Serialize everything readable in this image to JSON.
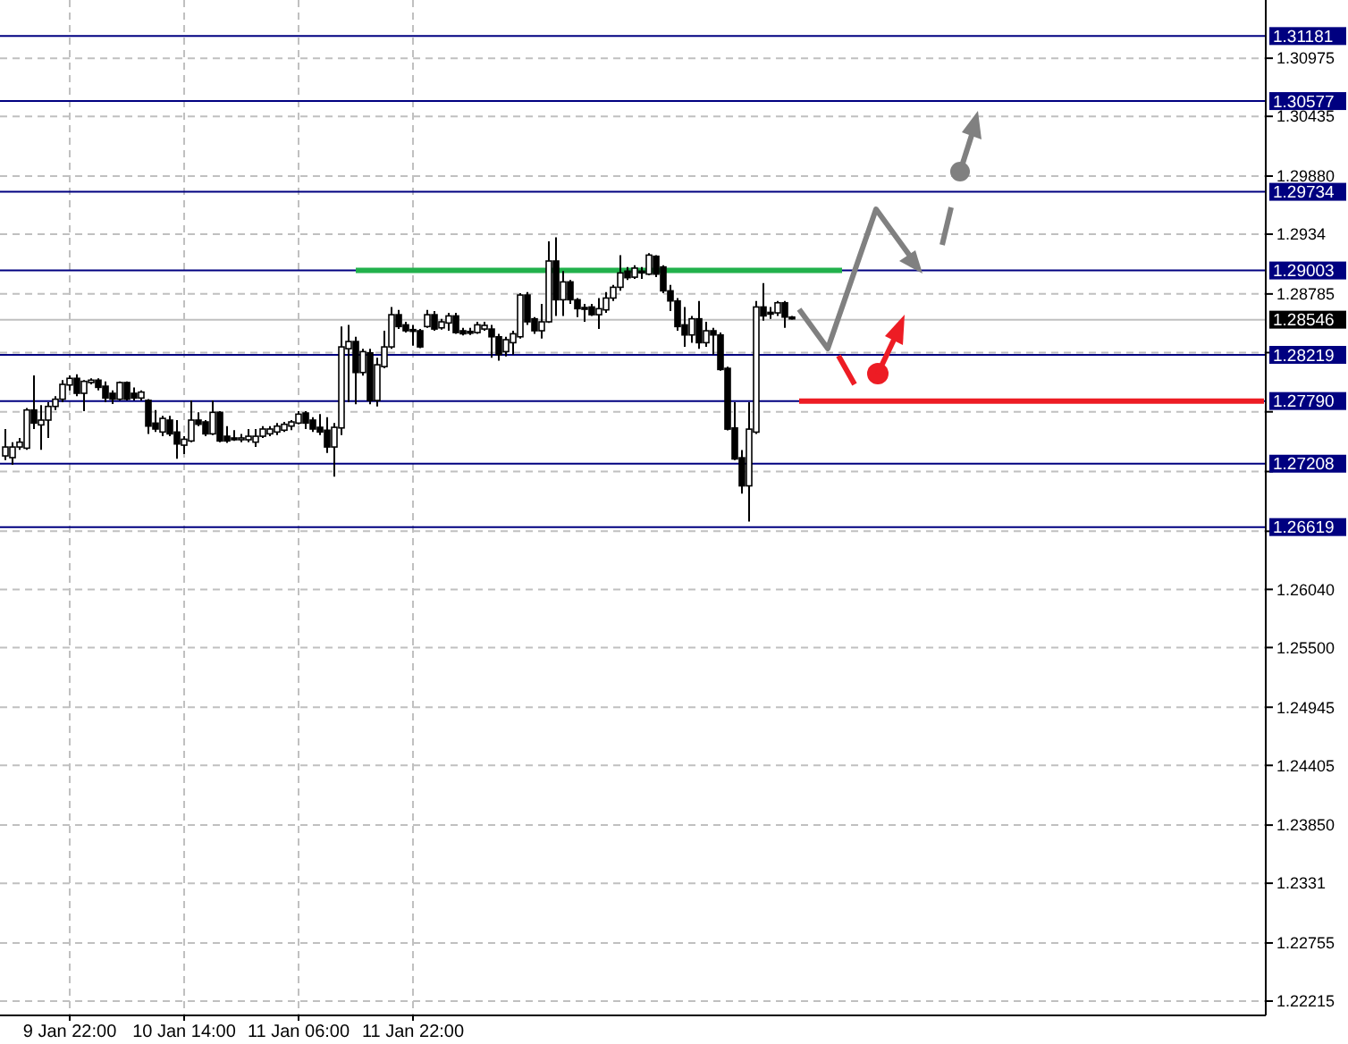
{
  "chart_data": {
    "type": "candlestick",
    "categories": [
      null,
      null,
      null,
      null,
      null,
      null,
      null,
      null,
      null,
      "9 Jan 22:00",
      null,
      null,
      null,
      null,
      null,
      null,
      null,
      null,
      null,
      null,
      null,
      null,
      null,
      null,
      null,
      "10 Jan 14:00",
      null,
      null,
      null,
      null,
      null,
      null,
      null,
      null,
      null,
      null,
      null,
      null,
      null,
      null,
      null,
      "11 Jan 06:00",
      null,
      null,
      null,
      null,
      null,
      null,
      null,
      null,
      null,
      null,
      null,
      null,
      null,
      null,
      null,
      "11 Jan 22:00",
      null,
      null,
      null,
      null,
      null,
      null,
      null,
      null,
      null,
      null,
      null,
      null,
      null,
      null,
      null,
      null,
      null,
      null,
      null,
      null,
      null,
      null,
      null,
      null,
      null,
      null,
      null,
      null,
      null,
      null,
      null,
      null,
      null,
      null,
      null,
      null,
      null,
      null,
      null,
      null,
      null,
      null,
      null,
      null,
      null,
      null,
      null,
      null,
      null,
      null,
      null,
      null,
      null,
      null,
      null,
      null,
      null,
      null,
      null,
      null,
      null,
      null,
      null,
      null,
      null,
      null,
      null,
      null,
      null,
      null,
      null,
      null,
      null,
      null,
      null,
      null,
      null,
      null,
      null,
      null,
      null,
      null,
      null,
      null,
      null,
      null,
      null,
      null,
      null,
      null,
      null,
      null,
      null,
      null,
      null,
      null,
      null,
      null,
      null,
      null,
      null,
      null,
      null,
      null,
      null,
      null,
      null,
      null,
      null,
      null,
      null,
      null,
      null,
      null,
      null,
      null,
      null,
      null,
      null
    ],
    "ohlc": [
      [
        1.2728,
        1.2753,
        1.27242,
        1.27363
      ],
      [
        1.27264,
        1.27408,
        1.27197,
        1.27363
      ],
      [
        1.27363,
        1.27447,
        1.27336,
        1.27408
      ],
      [
        1.27352,
        1.27724,
        1.27336,
        1.27707
      ],
      [
        1.27707,
        1.28028,
        1.2753,
        1.27585
      ],
      [
        1.27568,
        1.27751,
        1.27336,
        1.27613
      ],
      [
        1.27613,
        1.27779,
        1.27447,
        1.2774
      ],
      [
        1.2774,
        1.27834,
        1.27707,
        1.27807
      ],
      [
        1.27807,
        1.27984,
        1.27779,
        1.27945
      ],
      [
        1.27939,
        1.28028,
        1.2789,
        1.28001
      ],
      [
        1.28001,
        1.28039,
        1.27834,
        1.27862
      ],
      [
        1.27862,
        1.27984,
        1.27696,
        1.27973
      ],
      [
        1.27962,
        1.28001,
        1.27945,
        1.27984
      ],
      [
        1.27984,
        1.28001,
        1.2789,
        1.27917
      ],
      [
        1.27928,
        1.27973,
        1.27779,
        1.27818
      ],
      [
        1.27862,
        1.2789,
        1.27762,
        1.27807
      ],
      [
        1.27807,
        1.27973,
        1.27796,
        1.27962
      ],
      [
        1.27962,
        1.27973,
        1.27796,
        1.27807
      ],
      [
        1.27862,
        1.27917,
        1.27796,
        1.27818
      ],
      [
        1.27818,
        1.2789,
        1.27796,
        1.27873
      ],
      [
        1.27796,
        1.27807,
        1.27485,
        1.27557
      ],
      [
        1.27585,
        1.27707,
        1.27502,
        1.2753
      ],
      [
        1.27502,
        1.27652,
        1.27463,
        1.27629
      ],
      [
        1.27613,
        1.27652,
        1.27463,
        1.27485
      ],
      [
        1.27502,
        1.27613,
        1.27253,
        1.27391
      ],
      [
        1.2738,
        1.27463,
        1.27297,
        1.27435
      ],
      [
        1.27419,
        1.27796,
        1.27408,
        1.27613
      ],
      [
        1.27613,
        1.27685,
        1.27557,
        1.27574
      ],
      [
        1.27596,
        1.27613,
        1.27463,
        1.27485
      ],
      [
        1.27485,
        1.27796,
        1.27474,
        1.27685
      ],
      [
        1.27685,
        1.27696,
        1.27408,
        1.27419
      ],
      [
        1.27463,
        1.27557,
        1.27402,
        1.27419
      ],
      [
        1.27447,
        1.27519,
        1.27419,
        1.27441
      ],
      [
        1.27441,
        1.27485,
        1.27408,
        1.27447
      ],
      [
        1.2743,
        1.2753,
        1.27408,
        1.27463
      ],
      [
        1.27408,
        1.2753,
        1.27363,
        1.27463
      ],
      [
        1.27463,
        1.27557,
        1.27447,
        1.2753
      ],
      [
        1.27485,
        1.27557,
        1.27463,
        1.2753
      ],
      [
        1.27502,
        1.27585,
        1.27474,
        1.27557
      ],
      [
        1.27519,
        1.27596,
        1.27502,
        1.27574
      ],
      [
        1.27557,
        1.27613,
        1.27519,
        1.27596
      ],
      [
        1.27585,
        1.27696,
        1.27574,
        1.27668
      ],
      [
        1.27679,
        1.27696,
        1.2753,
        1.27585
      ],
      [
        1.27613,
        1.2764,
        1.27502,
        1.2753
      ],
      [
        1.27546,
        1.27668,
        1.27474,
        1.27502
      ],
      [
        1.27519,
        1.2764,
        1.27308,
        1.27363
      ],
      [
        1.27363,
        1.27585,
        1.27087,
        1.27546
      ],
      [
        1.2754,
        1.28482,
        1.27473,
        1.28293
      ],
      [
        1.28276,
        1.28498,
        1.27778,
        1.28343
      ],
      [
        1.28343,
        1.28387,
        1.27761,
        1.28055
      ],
      [
        1.28055,
        1.28276,
        1.28027,
        1.28249
      ],
      [
        1.28238,
        1.28276,
        1.27761,
        1.27795
      ],
      [
        1.27795,
        1.28193,
        1.27739,
        1.28127
      ],
      [
        1.2811,
        1.28443,
        1.28094,
        1.28293
      ],
      [
        1.28293,
        1.28664,
        1.28276,
        1.28592
      ],
      [
        1.28592,
        1.28637,
        1.28459,
        1.28482
      ],
      [
        1.28498,
        1.28526,
        1.28426,
        1.28443
      ],
      [
        1.28454,
        1.28498,
        1.28304,
        1.28448
      ],
      [
        1.28443,
        1.28459,
        1.28282,
        1.28293
      ],
      [
        1.28482,
        1.28637,
        1.2847,
        1.28592
      ],
      [
        1.28592,
        1.28626,
        1.28443,
        1.28459
      ],
      [
        1.2847,
        1.28554,
        1.28454,
        1.28526
      ],
      [
        1.28515,
        1.28609,
        1.28443,
        1.28581
      ],
      [
        1.28581,
        1.28609,
        1.28415,
        1.28426
      ],
      [
        1.28443,
        1.2847,
        1.28399,
        1.28415
      ],
      [
        1.28437,
        1.2847,
        1.28404,
        1.28426
      ],
      [
        1.28426,
        1.28526,
        1.28415,
        1.28498
      ],
      [
        1.28459,
        1.28526,
        1.28443,
        1.28493
      ],
      [
        1.28459,
        1.28498,
        1.28193,
        1.28387
      ],
      [
        1.28387,
        1.28415,
        1.28166,
        1.28221
      ],
      [
        1.28249,
        1.28387,
        1.28205,
        1.2836
      ],
      [
        1.28332,
        1.28443,
        1.28221,
        1.28415
      ],
      [
        1.28387,
        1.28792,
        1.28371,
        1.28775
      ],
      [
        1.28775,
        1.28803,
        1.28498,
        1.28526
      ],
      [
        1.28554,
        1.2857,
        1.28415,
        1.28443
      ],
      [
        1.28443,
        1.28692,
        1.28371,
        1.28526
      ],
      [
        1.28526,
        1.29274,
        1.28515,
        1.29091
      ],
      [
        1.29091,
        1.29312,
        1.28581,
        1.28731
      ],
      [
        1.28731,
        1.28997,
        1.28581,
        1.28897
      ],
      [
        1.28897,
        1.28914,
        1.28692,
        1.28731
      ],
      [
        1.28731,
        1.28747,
        1.2857,
        1.28648
      ],
      [
        1.28659,
        1.28692,
        1.28526,
        1.28648
      ],
      [
        1.28664,
        1.28692,
        1.28581,
        1.28592
      ],
      [
        1.28592,
        1.28747,
        1.28459,
        1.28648
      ],
      [
        1.28637,
        1.28803,
        1.28609,
        1.28747
      ],
      [
        1.28747,
        1.28869,
        1.2872,
        1.28847
      ],
      [
        1.28847,
        1.29146,
        1.28814,
        1.2898
      ],
      [
        1.28997,
        1.29036,
        1.28914,
        1.28936
      ],
      [
        1.28941,
        1.29052,
        1.28925,
        1.29025
      ],
      [
        1.28997,
        1.29036,
        1.28925,
        1.28991
      ],
      [
        1.28969,
        1.29163,
        1.28958,
        1.29146
      ],
      [
        1.29135,
        1.29146,
        1.28942,
        1.28969
      ],
      [
        1.29036,
        1.29052,
        1.28792,
        1.28814
      ],
      [
        1.28814,
        1.28869,
        1.28626,
        1.2872
      ],
      [
        1.2872,
        1.28747,
        1.28443,
        1.28482
      ],
      [
        1.28498,
        1.28664,
        1.28293,
        1.28404
      ],
      [
        1.28404,
        1.28581,
        1.28332,
        1.28554
      ],
      [
        1.28554,
        1.2872,
        1.28276,
        1.28332
      ],
      [
        1.28332,
        1.28526,
        1.28293,
        1.28443
      ],
      [
        1.28443,
        1.2847,
        1.28221,
        1.28404
      ],
      [
        1.28404,
        1.28426,
        1.28072,
        1.28083
      ],
      [
        1.28094,
        1.2811,
        1.27518,
        1.27529
      ],
      [
        1.2754,
        1.27778,
        1.27241,
        1.27252
      ],
      [
        1.27263,
        1.27335,
        1.2693,
        1.27002
      ],
      [
        1.27002,
        1.27778,
        1.2667,
        1.27529
      ],
      [
        1.27501,
        1.2872,
        1.27484,
        1.28664
      ],
      [
        1.28664,
        1.28886,
        1.28537,
        1.28581
      ],
      [
        1.28614,
        1.28664,
        1.28554,
        1.28603
      ],
      [
        1.28609,
        1.2872,
        1.28581,
        1.28703
      ],
      [
        1.28703,
        1.2872,
        1.2847,
        1.2857
      ],
      [
        1.2857,
        1.28581,
        1.28548,
        1.28559
      ],
      null,
      null,
      null,
      null,
      null,
      null,
      null,
      null,
      null,
      null,
      null,
      null,
      null,
      null,
      null,
      null,
      null,
      null,
      null,
      null,
      null,
      null,
      null,
      null,
      null,
      null,
      null,
      null,
      null,
      null,
      null,
      null,
      null,
      null,
      null,
      null,
      null,
      null,
      null,
      null,
      null,
      null,
      null,
      null,
      null,
      null,
      null,
      null,
      null,
      null,
      null,
      null,
      null,
      null,
      null,
      null,
      null,
      null,
      null,
      null,
      null,
      null,
      null,
      null,
      null,
      null
    ],
    "series": [
      {
        "type": "line",
        "color": "#22b14c",
        "values": [
          null,
          null,
          null,
          null,
          null,
          null,
          null,
          null,
          null,
          null,
          null,
          null,
          null,
          null,
          null,
          null,
          null,
          null,
          null,
          null,
          null,
          null,
          null,
          null,
          null,
          null,
          null,
          null,
          null,
          null,
          null,
          null,
          null,
          null,
          null,
          null,
          null,
          null,
          null,
          null,
          null,
          null,
          null,
          null,
          null,
          null,
          null,
          null,
          null,
          1.29003,
          1.29003,
          1.29003,
          1.29003,
          1.29003,
          1.29003,
          1.29003,
          1.29003,
          1.29003,
          1.29003,
          1.29003,
          1.29003,
          1.29003,
          1.29003,
          1.29003,
          1.29003,
          1.29003,
          1.29003,
          1.29003,
          1.29003,
          1.29003,
          1.29003,
          1.29003,
          1.29003,
          1.29003,
          1.29003,
          1.29003,
          1.29003,
          1.29003,
          1.29003,
          1.29003,
          1.29003,
          1.29003,
          1.29003,
          1.29003,
          1.29003,
          1.29003,
          1.29003,
          1.29003,
          1.29003,
          1.29003,
          1.29003,
          1.29003,
          1.29003,
          1.29003,
          1.29003,
          1.29003,
          1.29003,
          1.29003,
          1.29003,
          1.29003,
          1.29003,
          1.29003,
          1.29003,
          1.29003,
          1.29003,
          1.29003,
          1.29003,
          1.29003,
          1.29003,
          1.29003,
          1.29003,
          1.29003,
          1.29003,
          1.29003,
          1.29003,
          1.29003,
          1.29003,
          1.29003,
          null,
          null,
          null,
          null,
          null,
          null,
          null,
          null,
          null,
          null,
          null,
          null,
          null,
          null,
          null,
          null,
          null,
          null,
          null,
          null,
          null,
          null,
          null,
          null,
          null,
          null,
          null,
          null,
          null,
          null,
          null,
          null,
          null,
          null,
          null,
          null,
          null,
          null,
          null,
          null,
          null,
          null,
          null,
          null,
          null,
          null,
          null,
          null,
          null,
          null,
          null,
          null,
          null,
          null,
          null,
          null,
          null,
          null,
          null
        ]
      },
      {
        "type": "line",
        "color": "#ed1c24",
        "values": [
          null,
          null,
          null,
          null,
          null,
          null,
          null,
          null,
          null,
          null,
          null,
          null,
          null,
          null,
          null,
          null,
          null,
          null,
          null,
          null,
          null,
          null,
          null,
          null,
          null,
          null,
          null,
          null,
          null,
          null,
          null,
          null,
          null,
          null,
          null,
          null,
          null,
          null,
          null,
          null,
          null,
          null,
          null,
          null,
          null,
          null,
          null,
          null,
          null,
          null,
          null,
          null,
          null,
          null,
          null,
          null,
          null,
          null,
          null,
          null,
          null,
          null,
          null,
          null,
          null,
          null,
          null,
          null,
          null,
          null,
          null,
          null,
          null,
          null,
          null,
          null,
          null,
          null,
          null,
          null,
          null,
          null,
          null,
          null,
          null,
          null,
          null,
          null,
          null,
          null,
          null,
          null,
          null,
          null,
          null,
          null,
          null,
          null,
          null,
          null,
          null,
          null,
          null,
          null,
          null,
          null,
          null,
          null,
          null,
          null,
          null,
          1.2779,
          1.2779,
          1.2779,
          1.2779,
          1.2779,
          1.2779,
          1.2779,
          1.2779,
          1.2779,
          1.2779,
          1.2779,
          1.2779,
          1.2779,
          1.2779,
          1.2779,
          1.2779,
          1.2779,
          1.2779,
          1.2779,
          1.2779,
          1.2779,
          1.2779,
          1.2779,
          1.2779,
          1.2779,
          1.2779,
          1.2779,
          1.2779,
          1.2779,
          1.2779,
          1.2779,
          1.2779,
          1.2779,
          1.2779,
          1.2779,
          1.2779,
          1.2779,
          1.2779,
          1.2779,
          1.2779,
          1.2779,
          1.2779,
          1.2779,
          1.2779,
          1.2779,
          1.2779,
          1.2779,
          1.2779,
          1.2779,
          1.2779,
          1.2779,
          1.2779,
          1.2779,
          1.2779,
          1.2779,
          1.2779,
          1.2779,
          1.2779,
          1.2779,
          1.2779,
          1.2779,
          1.2779,
          1.2779,
          1.2779,
          1.2779,
          1.2779
        ]
      }
    ],
    "ylim": [
      1.22082,
      1.31516
    ],
    "yticks": [
      1.30975,
      1.30435,
      {
        "value": 1.2988,
        "label": "1.29880"
      },
      1.2934,
      1.28785,
      {
        "value": 1.2824,
        "label": null
      },
      {
        "value": 1.2769,
        "label": null
      },
      {
        "value": 1.27135,
        "label": null
      },
      {
        "value": 1.2658,
        "label": null
      },
      {
        "value": 1.2604,
        "label": "1.26040"
      },
      {
        "value": 1.255,
        "label": "1.25500"
      },
      1.24945,
      1.24405,
      {
        "value": 1.2385,
        "label": "1.23850"
      },
      1.2331,
      1.22755,
      1.22215
    ],
    "grid": true,
    "ref_lines": [
      {
        "axis": "y",
        "value": 1.31181,
        "label": "1.31181",
        "color": "#000080"
      },
      {
        "axis": "y",
        "value": 1.30577,
        "label": "1.30577",
        "color": "#000080"
      },
      {
        "axis": "y",
        "value": 1.29734,
        "label": "1.29734",
        "color": "#000080"
      },
      {
        "axis": "y",
        "value": 1.29003,
        "label": "1.29003",
        "color": "#000080"
      },
      {
        "axis": "y",
        "value": 1.28546,
        "label": "1.28546",
        "color": "#c0c0c0"
      },
      {
        "axis": "y",
        "value": 1.28219,
        "label": "1.28219",
        "color": "#000080"
      },
      {
        "axis": "y",
        "value": 1.2779,
        "label": "1.27790",
        "color": "#000080"
      },
      {
        "axis": "y",
        "value": 1.27208,
        "label": "1.27208",
        "color": "#000080"
      },
      {
        "axis": "y",
        "value": 1.26619,
        "label": "1.26619",
        "color": "#000080"
      }
    ]
  }
}
